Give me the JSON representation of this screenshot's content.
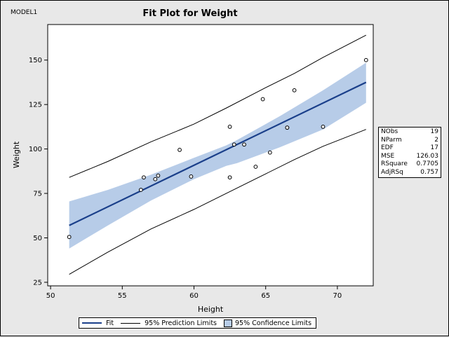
{
  "model_label": "MODEL1",
  "colors": {
    "fit": "#1a3f8a",
    "confidence_fill": "#b7cce8",
    "prediction": "#000000",
    "background": "#e8e8e8",
    "plot_area": "#ffffff"
  },
  "stats": [
    {
      "label": "NObs",
      "value": "19"
    },
    {
      "label": "NParm",
      "value": "2"
    },
    {
      "label": "EDF",
      "value": "17"
    },
    {
      "label": "MSE",
      "value": "126.03"
    },
    {
      "label": "RSquare",
      "value": "0.7705"
    },
    {
      "label": "AdjRSq",
      "value": "0.757"
    }
  ],
  "legend": [
    {
      "label": "Fit",
      "kind": "fit-line"
    },
    {
      "label": "95% Prediction Limits",
      "kind": "prediction-line"
    },
    {
      "label": "95% Confidence Limits",
      "kind": "confidence-band"
    }
  ],
  "chart_data": {
    "type": "scatter",
    "title": "Fit Plot for Weight",
    "xlabel": "Height",
    "ylabel": "Weight",
    "xlim": [
      49.8,
      72.5
    ],
    "ylim": [
      23,
      170
    ],
    "xticks": [
      50,
      55,
      60,
      65,
      70
    ],
    "yticks": [
      25,
      50,
      75,
      100,
      125,
      150
    ],
    "grid": false,
    "legend_position": "bottom",
    "points": [
      {
        "x": 51.3,
        "y": 50.5
      },
      {
        "x": 56.3,
        "y": 77.0
      },
      {
        "x": 56.5,
        "y": 84.0
      },
      {
        "x": 57.3,
        "y": 83.0
      },
      {
        "x": 57.5,
        "y": 85.0
      },
      {
        "x": 59.0,
        "y": 99.5
      },
      {
        "x": 59.8,
        "y": 84.5
      },
      {
        "x": 62.5,
        "y": 112.5
      },
      {
        "x": 62.5,
        "y": 84.0
      },
      {
        "x": 62.8,
        "y": 102.5
      },
      {
        "x": 63.5,
        "y": 102.5
      },
      {
        "x": 64.3,
        "y": 90.0
      },
      {
        "x": 64.8,
        "y": 128.0
      },
      {
        "x": 65.3,
        "y": 98.0
      },
      {
        "x": 66.5,
        "y": 112.0
      },
      {
        "x": 66.5,
        "y": 112.0
      },
      {
        "x": 67.0,
        "y": 133.0
      },
      {
        "x": 69.0,
        "y": 112.5
      },
      {
        "x": 72.0,
        "y": 150.0
      }
    ],
    "fit": {
      "x": [
        51.3,
        72.0
      ],
      "y": [
        57.0,
        137.5
      ]
    },
    "confidence_limits": {
      "x": [
        51.3,
        54.0,
        57.0,
        60.0,
        62.25,
        63.0,
        66.0,
        69.0,
        72.0
      ],
      "lower": [
        44.0,
        57.0,
        71.0,
        83.0,
        90.5,
        92.0,
        101.0,
        111.0,
        126.0
      ],
      "upper": [
        70.5,
        77.0,
        85.5,
        95.0,
        102.0,
        105.0,
        118.5,
        133.0,
        148.5
      ]
    },
    "prediction_limits": {
      "x": [
        51.3,
        54.0,
        57.0,
        60.0,
        62.25,
        65.0,
        67.0,
        69.0,
        72.0
      ],
      "lower": [
        29.5,
        42.0,
        55.0,
        66.0,
        75.0,
        86.0,
        94.0,
        101.5,
        111.0
      ],
      "upper": [
        84.0,
        93.0,
        104.0,
        114.0,
        123.0,
        134.5,
        142.5,
        151.5,
        164.0
      ]
    }
  }
}
